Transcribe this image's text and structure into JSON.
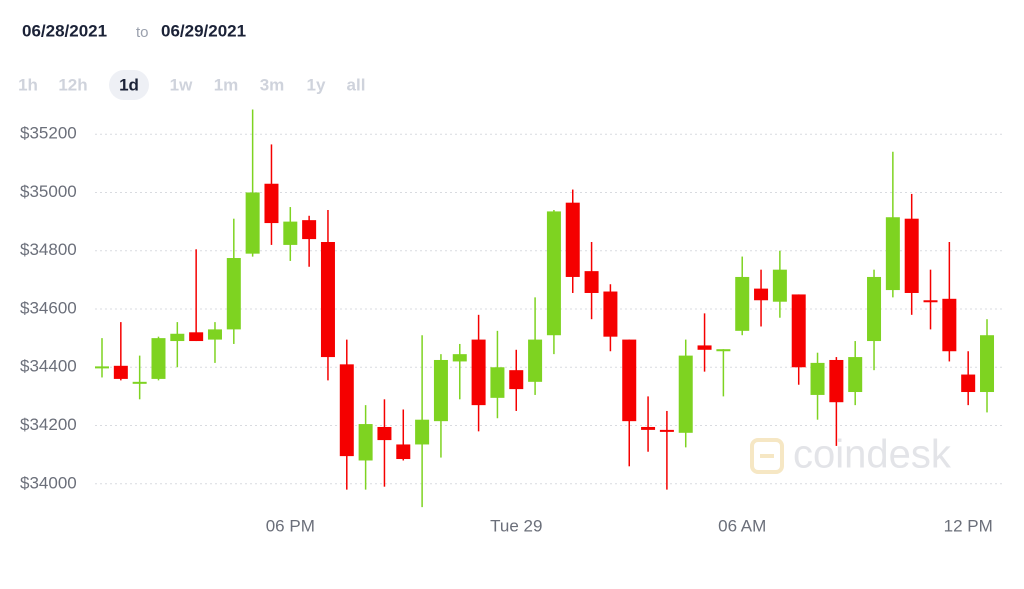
{
  "header": {
    "from": "06/28/2021",
    "to_word": "to",
    "to": "06/29/2021"
  },
  "ranges": [
    "1h",
    "12h",
    "1d",
    "1w",
    "1m",
    "3m",
    "1y",
    "all"
  ],
  "selected_range": "1d",
  "watermark": "coindesk",
  "chart_data": {
    "type": "candlestick",
    "up_color": "#7ed321",
    "down_color": "#f50000",
    "grid": true,
    "ylim": [
      33910,
      35290
    ],
    "yticks": [
      {
        "value": 34000,
        "label": "$34000"
      },
      {
        "value": 34200,
        "label": "$34200"
      },
      {
        "value": 34400,
        "label": "$34400"
      },
      {
        "value": 34600,
        "label": "$34600"
      },
      {
        "value": 34800,
        "label": "$34800"
      },
      {
        "value": 35000,
        "label": "$35000"
      },
      {
        "value": 35200,
        "label": "$35200"
      }
    ],
    "categories": [
      null,
      null,
      null,
      null,
      null,
      null,
      null,
      null,
      null,
      null,
      "06 PM",
      null,
      null,
      null,
      null,
      null,
      null,
      null,
      null,
      null,
      null,
      null,
      "Tue 29",
      null,
      null,
      null,
      null,
      null,
      null,
      null,
      null,
      null,
      null,
      null,
      "06 AM",
      null,
      null,
      null,
      null,
      null,
      null,
      null,
      null,
      null,
      null,
      null,
      "12 PM",
      null
    ],
    "open": [
      34400,
      34405,
      34345,
      34360,
      34490,
      34520,
      34495,
      34530,
      34790,
      35030,
      34820,
      34905,
      34830,
      34410,
      34080,
      34195,
      34135,
      34135,
      34215,
      34420,
      34495,
      34295,
      34390,
      34350,
      34510,
      34965,
      34730,
      34660,
      34495,
      34195,
      34185,
      34175,
      34475,
      34455,
      34525,
      34670,
      34625,
      34650,
      34305,
      34425,
      34315,
      34490,
      34665,
      34910,
      34630,
      34635,
      34375,
      34315
    ],
    "high": [
      34500,
      34555,
      34440,
      34505,
      34555,
      34805,
      34555,
      34910,
      35285,
      35165,
      34950,
      34920,
      34940,
      34495,
      34270,
      34290,
      34255,
      34510,
      34445,
      34480,
      34580,
      34525,
      34460,
      34640,
      34940,
      35010,
      34830,
      34685,
      34495,
      34300,
      34250,
      34495,
      34585,
      34462,
      34780,
      34735,
      34800,
      34650,
      34450,
      34435,
      34490,
      34735,
      35140,
      34995,
      34735,
      34830,
      34455,
      34565
    ],
    "low": [
      34365,
      34355,
      34290,
      34355,
      34400,
      34490,
      34415,
      34480,
      34780,
      34820,
      34765,
      34745,
      34355,
      33980,
      33980,
      33990,
      34080,
      33920,
      34090,
      34290,
      34180,
      34225,
      34250,
      34305,
      34445,
      34655,
      34565,
      34455,
      34060,
      34110,
      33980,
      34125,
      34385,
      34300,
      34510,
      34540,
      34570,
      34340,
      34220,
      34130,
      34270,
      34390,
      34640,
      34580,
      34530,
      34420,
      34270,
      34245
    ],
    "close": [
      34403,
      34360,
      34350,
      34500,
      34515,
      34490,
      34530,
      34775,
      35000,
      34895,
      34900,
      34840,
      34435,
      34095,
      34205,
      34150,
      34085,
      34220,
      34425,
      34445,
      34270,
      34400,
      34325,
      34495,
      34935,
      34710,
      34655,
      34505,
      34215,
      34185,
      34180,
      34440,
      34460,
      34462,
      34710,
      34630,
      34735,
      34400,
      34415,
      34280,
      34435,
      34710,
      34915,
      34655,
      34625,
      34455,
      34315,
      34510
    ]
  }
}
